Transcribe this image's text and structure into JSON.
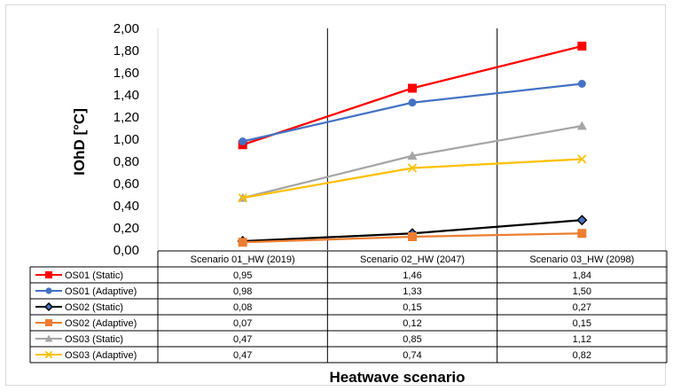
{
  "chart_data": {
    "type": "line",
    "title": "",
    "xlabel": "Heatwave scenario",
    "ylabel": "IOhD [°C]",
    "ylim": [
      0,
      2
    ],
    "y_ticks": [
      "0,00",
      "0,20",
      "0,40",
      "0,60",
      "0,80",
      "1,00",
      "1,20",
      "1,40",
      "1,60",
      "1,80",
      "2,00"
    ],
    "categories": [
      "Scenario 01_HW (2019)",
      "Scenario 02_HW (2047)",
      "Scenario 03_HW (2098)"
    ],
    "legend_placement": "data-table",
    "series": [
      {
        "name": "OS01 (Static)",
        "color": "#ff0000",
        "marker": "square",
        "values": [
          0.95,
          1.46,
          1.84
        ],
        "labels": [
          "0,95",
          "1,46",
          "1,84"
        ]
      },
      {
        "name": "OS01 (Adaptive)",
        "color": "#4472c4",
        "marker": "circle",
        "values": [
          0.98,
          1.33,
          1.5
        ],
        "labels": [
          "0,98",
          "1,33",
          "1,50"
        ]
      },
      {
        "name": "OS02 (Static)",
        "color": "#000000",
        "marker": "diamond",
        "values": [
          0.08,
          0.15,
          0.27
        ],
        "labels": [
          "0,08",
          "0,15",
          "0,27"
        ]
      },
      {
        "name": "OS02 (Adaptive)",
        "color": "#ed7d31",
        "marker": "square",
        "values": [
          0.07,
          0.12,
          0.15
        ],
        "labels": [
          "0,07",
          "0,12",
          "0,15"
        ]
      },
      {
        "name": "OS03 (Static)",
        "color": "#a5a5a5",
        "marker": "triangle",
        "values": [
          0.47,
          0.85,
          1.12
        ],
        "labels": [
          "0,47",
          "0,85",
          "1,12"
        ]
      },
      {
        "name": "OS03 (Adaptive)",
        "color": "#ffc000",
        "marker": "x",
        "values": [
          0.47,
          0.74,
          0.82
        ],
        "labels": [
          "0,47",
          "0,74",
          "0,82"
        ]
      }
    ]
  }
}
